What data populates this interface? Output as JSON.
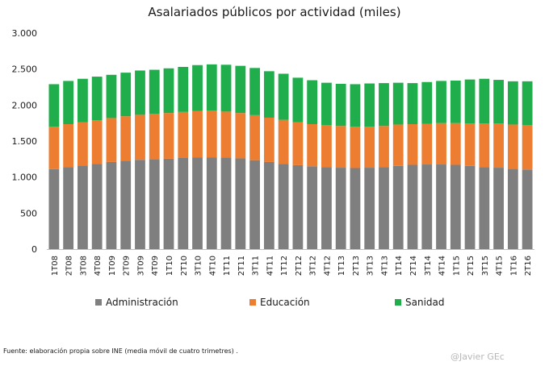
{
  "chart_data": {
    "type": "bar",
    "stacked": true,
    "title": "Asalariados públicos por  actividad (miles)",
    "xlabel": "",
    "ylabel": "",
    "ylim": [
      0,
      3000
    ],
    "yticks": [
      0,
      500,
      1000,
      1500,
      2000,
      2500,
      3000
    ],
    "ytick_labels": [
      "0",
      "500",
      "1.000",
      "1.500",
      "2.000",
      "2.500",
      "3.000"
    ],
    "categories": [
      "1T08",
      "2T08",
      "3T08",
      "4T08",
      "1T09",
      "2T09",
      "3T09",
      "4T09",
      "1T10",
      "2T10",
      "3T10",
      "4T10",
      "1T11",
      "2T11",
      "3T11",
      "4T11",
      "1T12",
      "2T12",
      "3T12",
      "4T12",
      "1T13",
      "2T13",
      "3T13",
      "4T13",
      "1T14",
      "2T14",
      "3T14",
      "4T14",
      "1T15",
      "2T15",
      "3T15",
      "4T15",
      "1T16",
      "2T16"
    ],
    "series": [
      {
        "name": "Administración",
        "color": "#7f7f7f",
        "values": [
          1110,
          1140,
          1160,
          1185,
          1210,
          1225,
          1240,
          1250,
          1255,
          1265,
          1275,
          1275,
          1270,
          1260,
          1235,
          1210,
          1185,
          1165,
          1150,
          1140,
          1130,
          1125,
          1130,
          1140,
          1155,
          1170,
          1175,
          1175,
          1170,
          1155,
          1140,
          1130,
          1115,
          1105
        ]
      },
      {
        "name": "Educación",
        "color": "#ed7d31",
        "values": [
          590,
          595,
          600,
          605,
          610,
          620,
          625,
          630,
          635,
          640,
          645,
          650,
          640,
          630,
          625,
          615,
          610,
          595,
          585,
          580,
          580,
          575,
          570,
          570,
          575,
          565,
          565,
          575,
          580,
          590,
          605,
          615,
          615,
          615
        ]
      },
      {
        "name": "Sanidad",
        "color": "#1fae4b",
        "values": [
          590,
          600,
          605,
          605,
          600,
          605,
          615,
          610,
          620,
          625,
          635,
          640,
          650,
          655,
          655,
          645,
          640,
          620,
          610,
          590,
          585,
          590,
          600,
          595,
          580,
          570,
          580,
          585,
          590,
          610,
          620,
          605,
          600,
          610
        ]
      }
    ],
    "legend_position": "bottom",
    "grid": false
  },
  "footer": {
    "source": "Fuente: elaboración  propia sobre INE (media móvil de cuatro trimetres) .",
    "credit": "@Javier GEc"
  }
}
